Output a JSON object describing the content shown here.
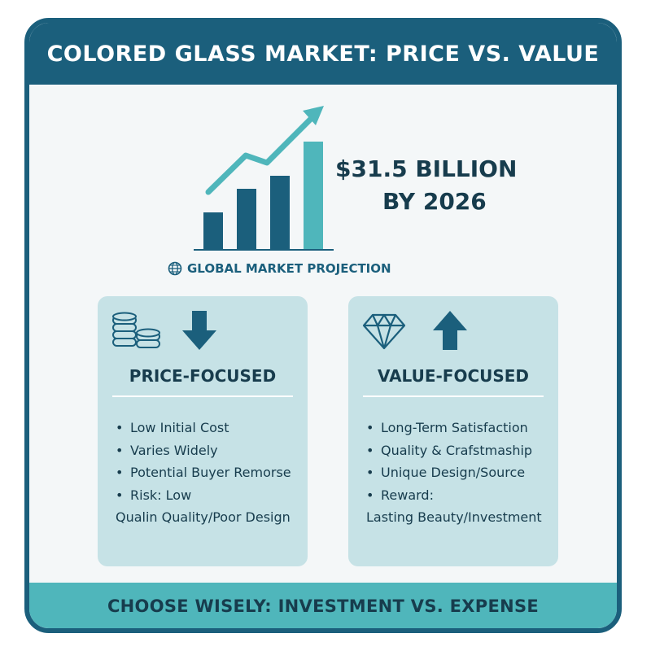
{
  "header": {
    "title": "COLORED GLASS MARKET: PRICE VS. VALUE"
  },
  "headline": {
    "line1": "$31.5 BILLION",
    "line2": "BY 2026"
  },
  "projection_label": "GLOBAL MARKET PROJECTION",
  "icons": {
    "globe": "globe-icon",
    "coins": "coins-icon",
    "down": "arrow-down-icon",
    "diamond": "diamond-icon",
    "up": "arrow-up-icon"
  },
  "colors": {
    "dark_teal": "#1b5f7c",
    "light_teal": "#4fb6bb",
    "panel": "#c6e2e6",
    "text": "#173c4d"
  },
  "price_panel": {
    "title": "PRICE-FOCUSED",
    "items": [
      {
        "text": "Low Initial Cost"
      },
      {
        "text": "Varies Widely"
      },
      {
        "text": "Potential Buyer Remorse"
      },
      {
        "text": "Risk: Low",
        "sub": "Qualin Quality/Poor Design"
      }
    ]
  },
  "value_panel": {
    "title": "VALUE-FOCUSED",
    "items": [
      {
        "text": "Long-Term Satisfaction"
      },
      {
        "text": "Quality & Crafstmaship"
      },
      {
        "text": "Unique Design/Source"
      },
      {
        "text": "Reward:",
        "sub": "Lasting Beauty/Investment"
      }
    ]
  },
  "footer": {
    "text": "CHOOSE WISELY: INVESTMENT VS. EXPENSE"
  }
}
